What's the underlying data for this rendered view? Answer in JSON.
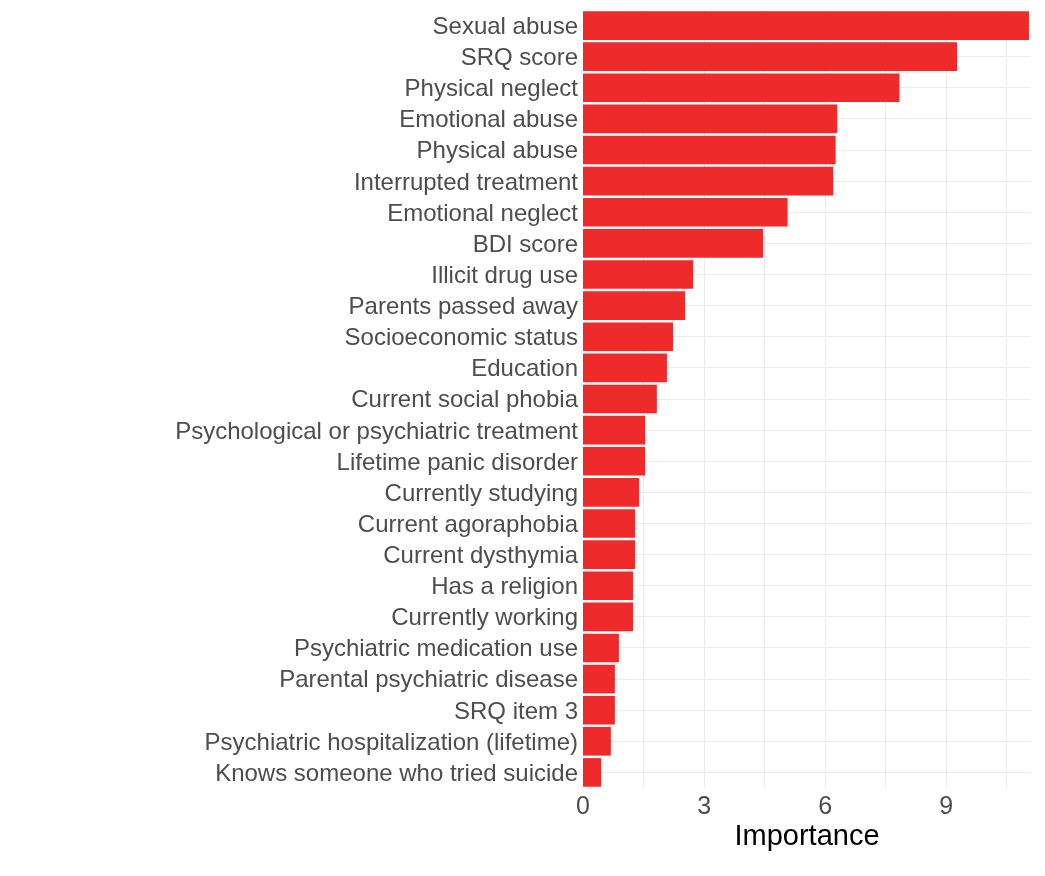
{
  "chart_data": {
    "type": "bar",
    "orientation": "horizontal",
    "xlabel": "Importance",
    "categories": [
      "Sexual abuse",
      "SRQ score",
      "Physical neglect",
      "Emotional abuse",
      "Physical abuse",
      "Interrupted treatment",
      "Emotional neglect",
      "BDI score",
      "Illicit drug use",
      "Parents passed away",
      "Socioeconomic status",
      "Education",
      "Current social phobia",
      "Psychological or psychiatric treatment",
      "Lifetime panic disorder",
      "Currently studying",
      "Current agoraphobia",
      "Current dysthymia",
      "Has a religion",
      "Currently working",
      "Psychiatric medication use",
      "Parental psychiatric disease",
      "SRQ item 3",
      "Psychiatric hospitalization (lifetime)",
      "Knows someone who tried suicide"
    ],
    "values": [
      11.05,
      9.27,
      7.84,
      6.3,
      6.26,
      6.2,
      5.07,
      4.46,
      2.73,
      2.53,
      2.23,
      2.08,
      1.83,
      1.54,
      1.54,
      1.39,
      1.29,
      1.29,
      1.24,
      1.24,
      0.89,
      0.79,
      0.79,
      0.69,
      0.45
    ],
    "color": "#ee2a2a",
    "xlim": [
      0,
      11.1
    ],
    "xticks": [
      0,
      {
        "value": 1.5,
        "label": null
      },
      3,
      {
        "value": 4.5,
        "label": null
      },
      6,
      {
        "value": 7.5,
        "label": null
      },
      9,
      {
        "value": 10.5,
        "label": null
      }
    ],
    "grid": true
  }
}
